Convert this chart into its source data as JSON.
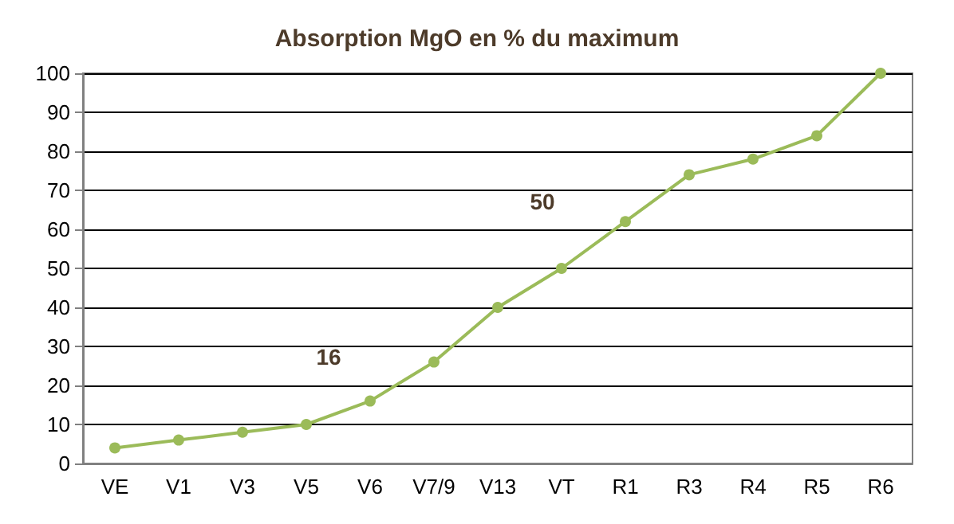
{
  "chart_data": {
    "type": "line",
    "title": "Absorption MgO en % du maximum",
    "categories": [
      "VE",
      "V1",
      "V3",
      "V5",
      "V6",
      "V7/9",
      "V13",
      "VT",
      "R1",
      "R3",
      "R4",
      "R5",
      "R6"
    ],
    "series": [
      {
        "color": "#9bbb59",
        "values": [
          4,
          6,
          8,
          10,
          16,
          26,
          40,
          50,
          62,
          74,
          78,
          84,
          100
        ]
      }
    ],
    "ylim": [
      0,
      100
    ],
    "yticks": [
      0,
      10,
      20,
      30,
      40,
      50,
      60,
      70,
      80,
      90,
      100
    ],
    "grid": "y",
    "marker": "circle",
    "line_style": "solid",
    "annotations": [
      {
        "text": "16",
        "x": "V6",
        "y": 16
      },
      {
        "text": "50",
        "x": "VT",
        "y": 50
      }
    ]
  }
}
